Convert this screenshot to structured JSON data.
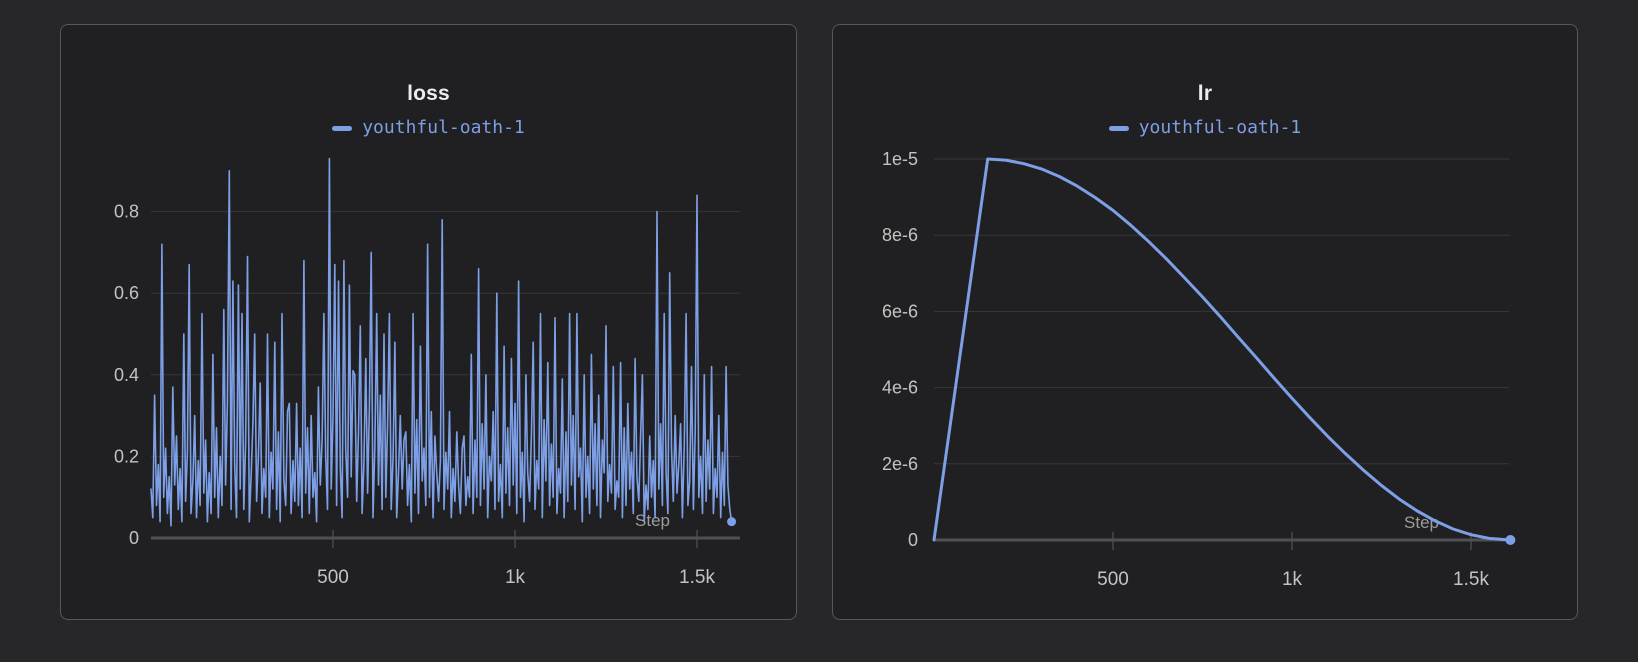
{
  "theme": {
    "page_bg": "#27272a",
    "panel_bg": "#202022",
    "panel_border": "#57575b",
    "grid_color": "#35373a",
    "axis_color": "#4e5052",
    "tick_color": "#47494c",
    "tick_text_color": "#c3c3c3",
    "title_color": "#ececec",
    "axis_hint_color": "#9c9c9c",
    "accent": "#7d9fe6"
  },
  "chart_data": [
    {
      "type": "line",
      "title": "loss",
      "series": [
        {
          "name": "youthful-oath-1",
          "color": "#7d9fe6"
        }
      ],
      "legend_position": "top-center",
      "grid": "horizontal",
      "xlabel": "Step",
      "xlim": [
        0,
        1618
      ],
      "ylim": [
        0,
        0.95
      ],
      "x_ticks": [
        {
          "value": 500,
          "label": "500"
        },
        {
          "value": 1000,
          "label": "1k"
        },
        {
          "value": 1500,
          "label": "1.5k"
        }
      ],
      "y_ticks": [
        {
          "value": 0,
          "label": "0"
        },
        {
          "value": 0.2,
          "label": "0.2"
        },
        {
          "value": 0.4,
          "label": "0.4"
        },
        {
          "value": 0.6,
          "label": "0.6"
        },
        {
          "value": 0.8,
          "label": "0.8"
        }
      ],
      "x_step": 5,
      "end_marker": true,
      "values": [
        0.12,
        0.05,
        0.35,
        0.08,
        0.18,
        0.04,
        0.72,
        0.1,
        0.22,
        0.06,
        0.15,
        0.03,
        0.37,
        0.13,
        0.25,
        0.07,
        0.17,
        0.04,
        0.5,
        0.09,
        0.21,
        0.67,
        0.06,
        0.14,
        0.3,
        0.05,
        0.19,
        0.08,
        0.55,
        0.11,
        0.24,
        0.04,
        0.16,
        0.06,
        0.45,
        0.1,
        0.27,
        0.05,
        0.2,
        0.08,
        0.56,
        0.13,
        0.33,
        0.9,
        0.07,
        0.63,
        0.18,
        0.05,
        0.62,
        0.12,
        0.55,
        0.07,
        0.23,
        0.69,
        0.04,
        0.15,
        0.28,
        0.5,
        0.09,
        0.2,
        0.38,
        0.06,
        0.17,
        0.1,
        0.5,
        0.05,
        0.21,
        0.12,
        0.48,
        0.07,
        0.26,
        0.04,
        0.55,
        0.14,
        0.08,
        0.31,
        0.33,
        0.06,
        0.19,
        0.09,
        0.33,
        0.08,
        0.22,
        0.05,
        0.68,
        0.11,
        0.27,
        0.06,
        0.3,
        0.1,
        0.16,
        0.04,
        0.37,
        0.13,
        0.24,
        0.55,
        0.2,
        0.07,
        0.93,
        0.12,
        0.3,
        0.67,
        0.08,
        0.63,
        0.17,
        0.05,
        0.68,
        0.22,
        0.1,
        0.62,
        0.15,
        0.41,
        0.4,
        0.09,
        0.26,
        0.52,
        0.06,
        0.18,
        0.44,
        0.11,
        0.32,
        0.7,
        0.05,
        0.23,
        0.55,
        0.13,
        0.35,
        0.07,
        0.5,
        0.1,
        0.28,
        0.55,
        0.07,
        0.2,
        0.48,
        0.05,
        0.16,
        0.3,
        0.12,
        0.24,
        0.26,
        0.08,
        0.18,
        0.04,
        0.55,
        0.11,
        0.29,
        0.06,
        0.47,
        0.14,
        0.22,
        0.08,
        0.72,
        0.1,
        0.31,
        0.05,
        0.25,
        0.16,
        0.09,
        0.19,
        0.78,
        0.07,
        0.21,
        0.12,
        0.31,
        0.05,
        0.17,
        0.09,
        0.26,
        0.13,
        0.06,
        0.22,
        0.25,
        0.08,
        0.15,
        0.1,
        0.45,
        0.06,
        0.24,
        0.1,
        0.66,
        0.08,
        0.28,
        0.12,
        0.4,
        0.05,
        0.2,
        0.14,
        0.31,
        0.07,
        0.6,
        0.09,
        0.18,
        0.05,
        0.47,
        0.11,
        0.27,
        0.08,
        0.44,
        0.13,
        0.33,
        0.06,
        0.63,
        0.1,
        0.21,
        0.04,
        0.4,
        0.16,
        0.09,
        0.25,
        0.48,
        0.07,
        0.19,
        0.12,
        0.55,
        0.05,
        0.29,
        0.14,
        0.43,
        0.08,
        0.23,
        0.1,
        0.54,
        0.06,
        0.17,
        0.11,
        0.39,
        0.05,
        0.26,
        0.09,
        0.55,
        0.13,
        0.3,
        0.07,
        0.55,
        0.15,
        0.22,
        0.04,
        0.4,
        0.1,
        0.2,
        0.06,
        0.45,
        0.12,
        0.28,
        0.08,
        0.35,
        0.05,
        0.24,
        0.16,
        0.52,
        0.09,
        0.18,
        0.11,
        0.42,
        0.07,
        0.14,
        0.1,
        0.43,
        0.05,
        0.27,
        0.08,
        0.33,
        0.12,
        0.21,
        0.06,
        0.44,
        0.15,
        0.09,
        0.25,
        0.4,
        0.04,
        0.13,
        0.07,
        0.25,
        0.1,
        0.19,
        0.05,
        0.8,
        0.12,
        0.28,
        0.08,
        0.55,
        0.16,
        0.06,
        0.65,
        0.22,
        0.09,
        0.3,
        0.11,
        0.18,
        0.28,
        0.05,
        0.23,
        0.55,
        0.08,
        0.14,
        0.42,
        0.07,
        0.26,
        0.84,
        0.1,
        0.2,
        0.06,
        0.4,
        0.09,
        0.24,
        0.12,
        0.42,
        0.06,
        0.17,
        0.1,
        0.3,
        0.05,
        0.21,
        0.08,
        0.42,
        0.13,
        0.07,
        0.04
      ]
    },
    {
      "type": "line",
      "title": "lr",
      "series": [
        {
          "name": "youthful-oath-1",
          "color": "#7d9fe6"
        }
      ],
      "legend_position": "top-center",
      "grid": "horizontal",
      "xlabel": "Step",
      "xlim": [
        0,
        1610
      ],
      "ylim": [
        0,
        1e-05
      ],
      "x_ticks": [
        {
          "value": 500,
          "label": "500"
        },
        {
          "value": 1000,
          "label": "1k"
        },
        {
          "value": 1500,
          "label": "1.5k"
        }
      ],
      "y_ticks": [
        {
          "value": 0,
          "label": "0"
        },
        {
          "value": 2e-06,
          "label": "2e-6"
        },
        {
          "value": 4e-06,
          "label": "4e-6"
        },
        {
          "value": 6e-06,
          "label": "6e-6"
        },
        {
          "value": 8e-06,
          "label": "8e-6"
        },
        {
          "value": 1e-05,
          "label": "1e-5"
        }
      ],
      "end_marker": true,
      "points": [
        [
          0,
          0
        ],
        [
          150,
          1e-05
        ],
        [
          200,
          9.97e-06
        ],
        [
          250,
          9.88e-06
        ],
        [
          300,
          9.74e-06
        ],
        [
          350,
          9.54e-06
        ],
        [
          400,
          9.29e-06
        ],
        [
          450,
          8.99e-06
        ],
        [
          500,
          8.65e-06
        ],
        [
          550,
          8.26e-06
        ],
        [
          600,
          7.83e-06
        ],
        [
          650,
          7.37e-06
        ],
        [
          700,
          6.88e-06
        ],
        [
          750,
          6.38e-06
        ],
        [
          800,
          5.86e-06
        ],
        [
          850,
          5.32e-06
        ],
        [
          900,
          4.79e-06
        ],
        [
          950,
          4.25e-06
        ],
        [
          1000,
          3.72e-06
        ],
        [
          1050,
          3.21e-06
        ],
        [
          1100,
          2.72e-06
        ],
        [
          1150,
          2.26e-06
        ],
        [
          1200,
          1.83e-06
        ],
        [
          1250,
          1.43e-06
        ],
        [
          1300,
          1.07e-06
        ],
        [
          1350,
          7.6e-07
        ],
        [
          1400,
          5e-07
        ],
        [
          1450,
          2.9e-07
        ],
        [
          1500,
          1.4e-07
        ],
        [
          1550,
          4.2e-08
        ],
        [
          1610,
          0
        ]
      ]
    }
  ]
}
